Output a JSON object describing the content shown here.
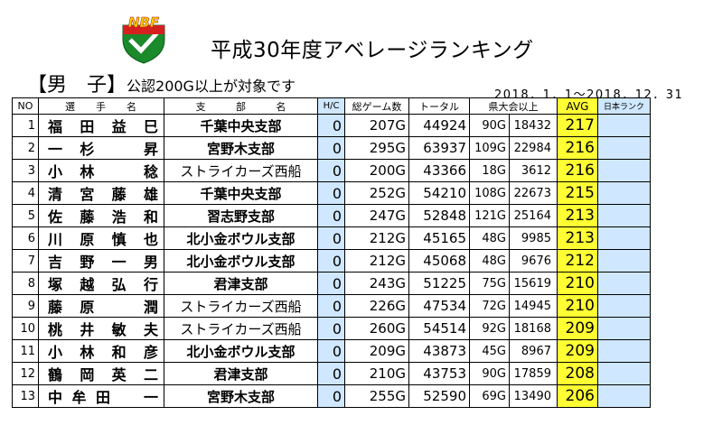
{
  "logo": {
    "text": "NBF",
    "colors": {
      "shield": "#1a8a2a",
      "check": "#ffffff",
      "ribbon": "#d62020",
      "text": "#f5d000"
    }
  },
  "title": "平成30年度アベレージランキング",
  "subtitle": {
    "bracket_label": "【男　子】",
    "note": "公認200G以上が対象です"
  },
  "period": "2018．1．1～2018．12．31",
  "colors": {
    "hc_bg": "#cfe7ff",
    "avg_bg": "#ffff33"
  },
  "headers": {
    "no": "NO",
    "name": [
      "選",
      "手",
      "名"
    ],
    "branch": [
      "支",
      "部",
      "名"
    ],
    "hc": "H/C",
    "games": "総ゲーム数",
    "total": "トータル",
    "pref": "県大会以上",
    "avg": "AVG",
    "jrank": "日本ランク"
  },
  "rows": [
    {
      "no": "1",
      "name": "福田益巳",
      "branch": "千葉中央支部",
      "bold": true,
      "hc": "0",
      "games": "207G",
      "total": "44924",
      "pref_games": "90G",
      "pref_score": "18432",
      "avg": "217"
    },
    {
      "no": "2",
      "name": "一杉　昇",
      "branch": "宮野木支部",
      "bold": true,
      "hc": "0",
      "games": "295G",
      "total": "63937",
      "pref_games": "109G",
      "pref_score": "22984",
      "avg": "216"
    },
    {
      "no": "3",
      "name": "小林　稔",
      "branch": "ストライカーズ西船",
      "bold": false,
      "hc": "0",
      "games": "200G",
      "total": "43366",
      "pref_games": "18G",
      "pref_score": "3612",
      "avg": "216"
    },
    {
      "no": "4",
      "name": "清宮藤雄",
      "branch": "千葉中央支部",
      "bold": true,
      "hc": "0",
      "games": "252G",
      "total": "54210",
      "pref_games": "108G",
      "pref_score": "22673",
      "avg": "215"
    },
    {
      "no": "5",
      "name": "佐藤浩和",
      "branch": "習志野支部",
      "bold": true,
      "hc": "0",
      "games": "247G",
      "total": "52848",
      "pref_games": "121G",
      "pref_score": "25164",
      "avg": "213"
    },
    {
      "no": "6",
      "name": "川原慎也",
      "branch": "北小金ボウル支部",
      "bold": true,
      "hc": "0",
      "games": "212G",
      "total": "45165",
      "pref_games": "48G",
      "pref_score": "9985",
      "avg": "213"
    },
    {
      "no": "7",
      "name": "吉野一男",
      "branch": "北小金ボウル支部",
      "bold": true,
      "hc": "0",
      "games": "212G",
      "total": "45068",
      "pref_games": "48G",
      "pref_score": "9676",
      "avg": "212"
    },
    {
      "no": "8",
      "name": "塚越弘行",
      "branch": "君津支部",
      "bold": true,
      "hc": "0",
      "games": "243G",
      "total": "51225",
      "pref_games": "75G",
      "pref_score": "15619",
      "avg": "210"
    },
    {
      "no": "9",
      "name": "藤原　潤",
      "branch": "ストライカーズ西船",
      "bold": false,
      "hc": "0",
      "games": "226G",
      "total": "47534",
      "pref_games": "72G",
      "pref_score": "14945",
      "avg": "210"
    },
    {
      "no": "10",
      "name": "桃井敏夫",
      "branch": "ストライカーズ西船",
      "bold": false,
      "hc": "0",
      "games": "260G",
      "total": "54514",
      "pref_games": "92G",
      "pref_score": "18168",
      "avg": "209"
    },
    {
      "no": "11",
      "name": "小林和彦",
      "branch": "北小金ボウル支部",
      "bold": true,
      "hc": "0",
      "games": "209G",
      "total": "43873",
      "pref_games": "45G",
      "pref_score": "8967",
      "avg": "209"
    },
    {
      "no": "12",
      "name": "鶴岡英二",
      "branch": "君津支部",
      "bold": true,
      "hc": "0",
      "games": "210G",
      "total": "43753",
      "pref_games": "90G",
      "pref_score": "17859",
      "avg": "208"
    },
    {
      "no": "13",
      "name": "中牟田　一",
      "branch": "宮野木支部",
      "bold": true,
      "hc": "0",
      "games": "255G",
      "total": "52590",
      "pref_games": "69G",
      "pref_score": "13490",
      "avg": "206"
    }
  ]
}
